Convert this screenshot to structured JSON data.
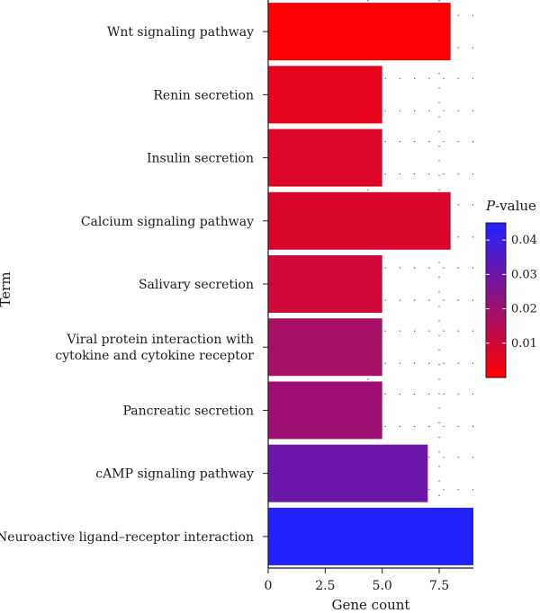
{
  "chart_data": {
    "type": "bar",
    "orientation": "horizontal",
    "xlabel": "Gene count",
    "ylabel": "Term",
    "xlim": [
      0,
      9
    ],
    "xticks": [
      0,
      2.5,
      5.0,
      7.5
    ],
    "xtick_labels": [
      "0",
      "2.5",
      "5.0",
      "7.5"
    ],
    "grid": "dotted",
    "categories": [
      [
        "Wnt signaling pathway"
      ],
      [
        "Renin secretion"
      ],
      [
        "Insulin secretion"
      ],
      [
        "Calcium signaling pathway"
      ],
      [
        "Salivary secretion"
      ],
      [
        "Viral protein interaction with",
        "cytokine and cytokine receptor"
      ],
      [
        "Pancreatic secretion"
      ],
      [
        "cAMP signaling pathway"
      ],
      [
        "Neuroactive ligand–receptor interaction"
      ]
    ],
    "values": [
      8,
      5,
      5,
      8,
      5,
      5,
      5,
      7,
      9
    ],
    "pvalues": [
      0.0005,
      0.005,
      0.007,
      0.008,
      0.01,
      0.018,
      0.02,
      0.03,
      0.045
    ],
    "legend": {
      "title_italic": "P",
      "title_rest": "-value",
      "placement": "right",
      "range": [
        0.0,
        0.045
      ],
      "ticks": [
        0.01,
        0.02,
        0.03,
        0.04
      ],
      "tick_labels": [
        "0.01",
        "0.02",
        "0.03",
        "0.04"
      ],
      "color_low": "#ff0000",
      "color_high": "#2222ff"
    }
  }
}
